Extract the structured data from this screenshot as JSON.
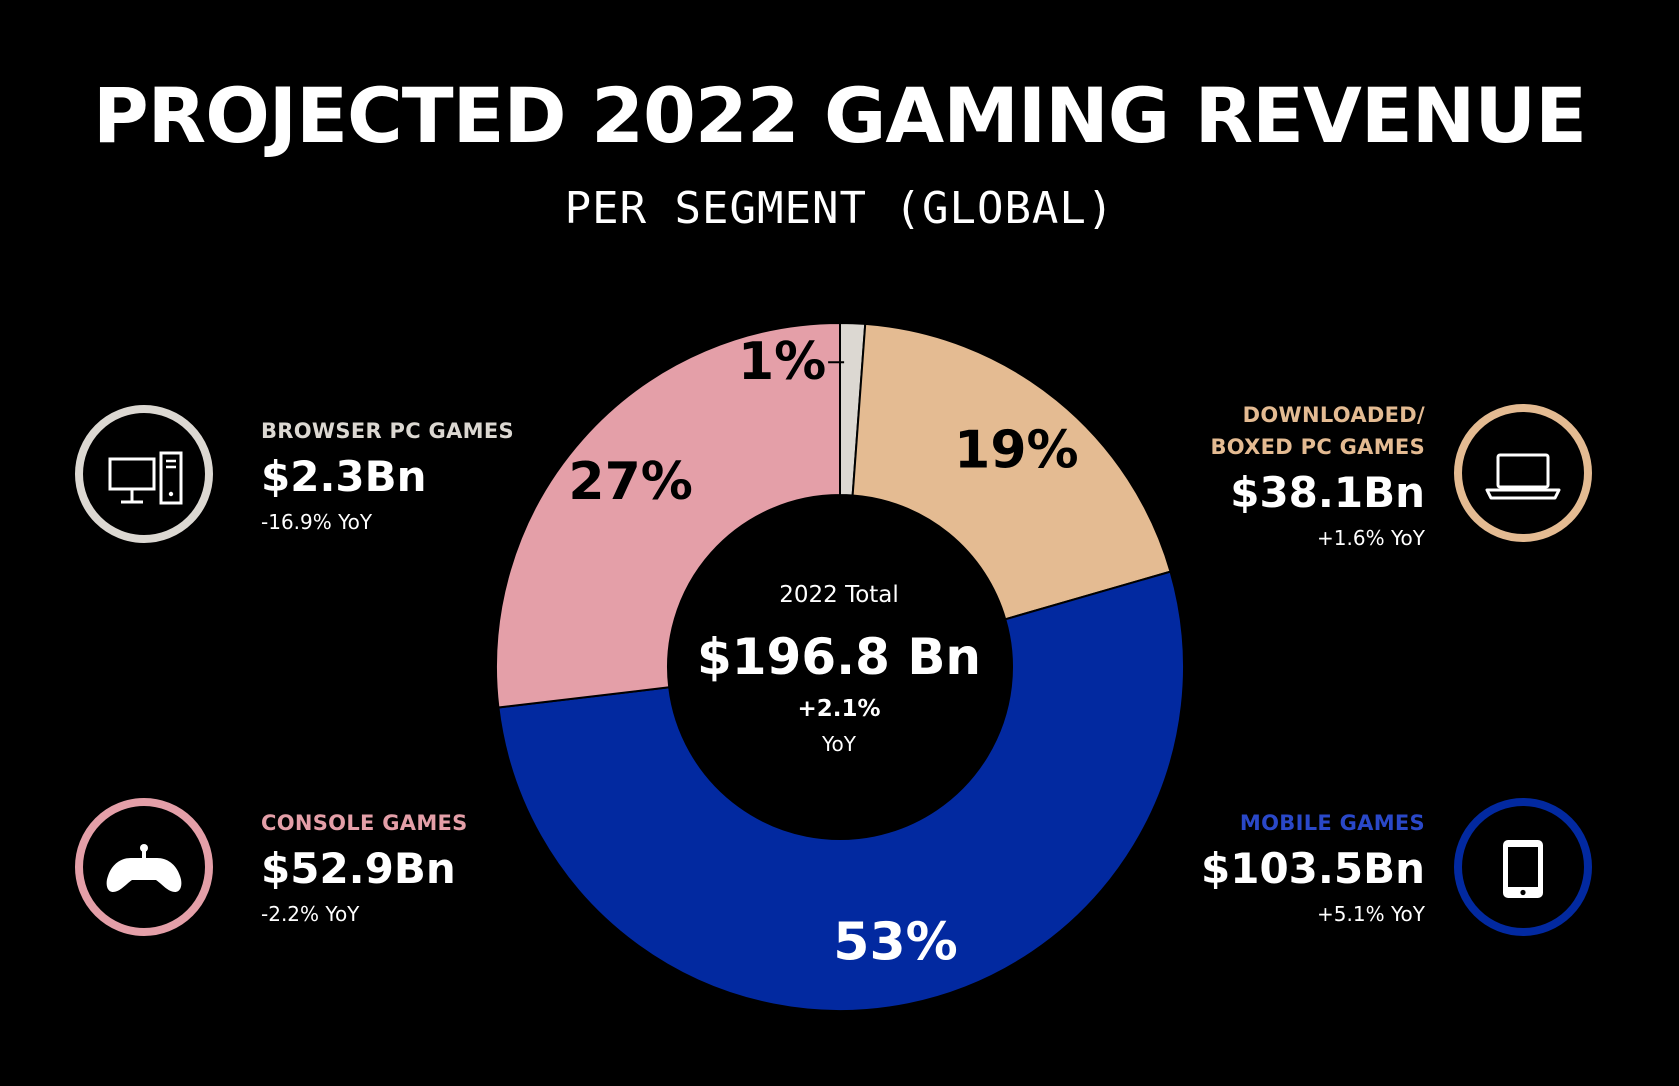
{
  "title": "PROJECTED 2022 GAMING REVENUE",
  "subtitle": "PER SEGMENT (GLOBAL)",
  "center": {
    "label": "2022 Total",
    "value": "$196.8 Bn",
    "change": "+2.1%",
    "change_unit": "YoY"
  },
  "segments": {
    "browser": {
      "name": "BROWSER PC GAMES",
      "value": "$2.3Bn",
      "change": "-16.9% YoY",
      "color": "#dcd8d2",
      "icon": "desktop-computer-icon"
    },
    "downloaded": {
      "name_line1": "DOWNLOADED/",
      "name_line2": "BOXED PC GAMES",
      "value": "$38.1Bn",
      "change": "+1.6% YoY",
      "color": "#e4bb92",
      "icon": "laptop-icon"
    },
    "console": {
      "name": "CONSOLE GAMES",
      "value": "$52.9Bn",
      "change": "-2.2% YoY",
      "color": "#e49fa8",
      "icon": "gamepad-icon"
    },
    "mobile": {
      "name": "MOBILE GAMES",
      "value": "$103.5Bn",
      "change": "+5.1% YoY",
      "color": "#0229a0",
      "icon": "smartphone-icon"
    }
  },
  "chart_data": {
    "type": "pie",
    "title": "PROJECTED 2022 GAMING REVENUE",
    "subtitle": "PER SEGMENT (GLOBAL)",
    "style": "donut",
    "categories": [
      "Browser PC Games",
      "Downloaded/Boxed PC Games",
      "Mobile Games",
      "Console Games"
    ],
    "values": [
      2.3,
      38.1,
      103.5,
      52.9
    ],
    "value_labels": [
      "1%",
      "19%",
      "53%",
      "27%"
    ],
    "colors": [
      "#dcd8d2",
      "#e4bb92",
      "#0229a0",
      "#e49fa8"
    ],
    "label_colors": [
      "#000000",
      "#000000",
      "#ffffff",
      "#000000"
    ],
    "start_angle_deg": 0,
    "direction": "clockwise",
    "total_label": "2022 Total",
    "total": "$196.8 Bn",
    "total_change": "+2.1%"
  }
}
